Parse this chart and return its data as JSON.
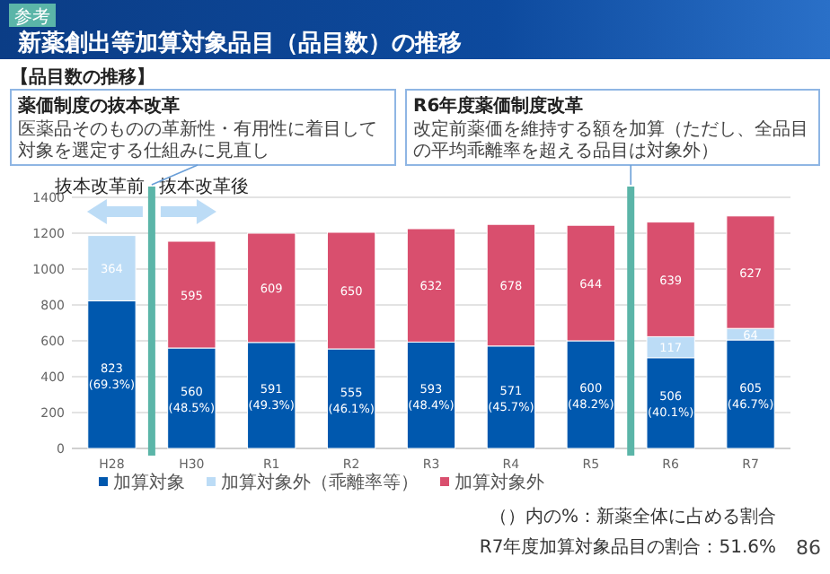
{
  "chart_data": {
    "type": "bar",
    "stacked": true,
    "title": "新薬創出等加算対象品目（品目数）の推移",
    "categories": [
      "H28",
      "H30",
      "R1",
      "R2",
      "R3",
      "R4",
      "R5",
      "R6",
      "R7"
    ],
    "series": [
      {
        "name": "加算対象",
        "color": "#0058ae",
        "values": [
          823,
          560,
          591,
          555,
          593,
          571,
          600,
          506,
          605
        ],
        "value_labels": [
          "823 (69.3%)",
          "560 (48.5%)",
          "591 (49.3%)",
          "555 (46.1%)",
          "593 (48.4%)",
          "571 (45.7%)",
          "600 (48.2%)",
          "506 (40.1%)",
          "605 (46.7%)"
        ]
      },
      {
        "name": "加算対象外（乖離率等）",
        "color": "#bcdcf6",
        "values": [
          364,
          null,
          null,
          null,
          null,
          null,
          null,
          117,
          64
        ],
        "value_labels": [
          "364",
          null,
          null,
          null,
          null,
          null,
          null,
          "117",
          "64"
        ]
      },
      {
        "name": "加算対象外",
        "color": "#d94f6e",
        "values": [
          null,
          595,
          609,
          650,
          632,
          678,
          644,
          639,
          627
        ],
        "value_labels": [
          null,
          "595",
          "609",
          "650",
          "632",
          "678",
          "644",
          "639",
          "627"
        ]
      }
    ],
    "ylim": [
      0,
      1400
    ],
    "yticks": [
      0,
      200,
      400,
      600,
      800,
      1000,
      1200,
      1400
    ],
    "grid": "y",
    "legend": "bottom",
    "annotations": [
      "参考",
      "【品目数の推移】",
      "薬価制度の抜本改革",
      "医薬品そのものの革新性・有用性に着目して対象を選定する仕組みに見直し",
      "R6年度薬価制度改革",
      "改定前薬価を維持する額を加算（ただし、全品目の平均乖離率を超える品目は対象外）",
      "抜本改革前",
      "抜本改革後",
      "（）内の%：新薬全体に占める割合",
      "R7年度加算対象品目の割合：51.6%",
      "86"
    ]
  }
}
